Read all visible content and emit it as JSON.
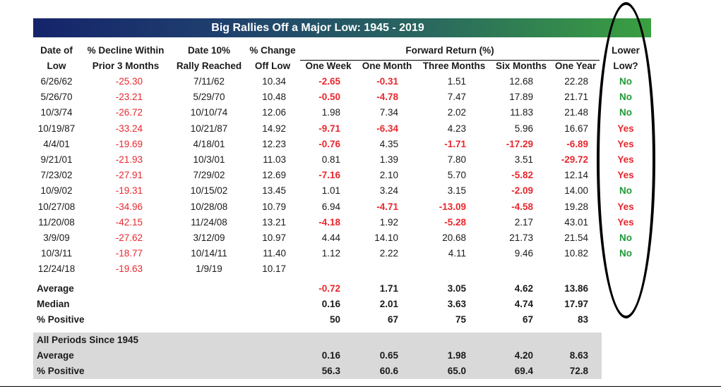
{
  "title": "Big Rallies Off a Major Low: 1945 - 2019",
  "headers": {
    "date_low": [
      "Date of",
      "Low"
    ],
    "decline": [
      "% Decline Within",
      "Prior 3 Months"
    ],
    "date10": [
      "Date 10%",
      "Rally Reached"
    ],
    "change": [
      "% Change",
      "Off Low"
    ],
    "forward": "Forward Return (%)",
    "one_week": "One Week",
    "one_month": "One Month",
    "three_months": "Three Months",
    "six_months": "Six Months",
    "one_year": "One Year",
    "lower_low": [
      "Lower",
      "Low?"
    ]
  },
  "rows": [
    {
      "date_low": "6/26/62",
      "decline": "-25.30",
      "date10": "7/11/62",
      "change": "10.34",
      "w1": "-2.65",
      "m1": "-0.31",
      "m3": "1.51",
      "m6": "12.68",
      "y1": "22.28",
      "lower": "No"
    },
    {
      "date_low": "5/26/70",
      "decline": "-23.21",
      "date10": "5/29/70",
      "change": "10.48",
      "w1": "-0.50",
      "m1": "-4.78",
      "m3": "7.47",
      "m6": "17.89",
      "y1": "21.71",
      "lower": "No"
    },
    {
      "date_low": "10/3/74",
      "decline": "-26.72",
      "date10": "10/10/74",
      "change": "12.06",
      "w1": "1.98",
      "m1": "7.34",
      "m3": "2.02",
      "m6": "11.83",
      "y1": "21.48",
      "lower": "No"
    },
    {
      "date_low": "10/19/87",
      "decline": "-33.24",
      "date10": "10/21/87",
      "change": "14.92",
      "w1": "-9.71",
      "m1": "-6.34",
      "m3": "4.23",
      "m6": "5.96",
      "y1": "16.67",
      "lower": "Yes"
    },
    {
      "date_low": "4/4/01",
      "decline": "-19.69",
      "date10": "4/18/01",
      "change": "12.23",
      "w1": "-0.76",
      "m1": "4.35",
      "m3": "-1.71",
      "m6": "-17.29",
      "y1": "-6.89",
      "lower": "Yes"
    },
    {
      "date_low": "9/21/01",
      "decline": "-21.93",
      "date10": "10/3/01",
      "change": "11.03",
      "w1": "0.81",
      "m1": "1.39",
      "m3": "7.80",
      "m6": "3.51",
      "y1": "-29.72",
      "lower": "Yes"
    },
    {
      "date_low": "7/23/02",
      "decline": "-27.91",
      "date10": "7/29/02",
      "change": "12.69",
      "w1": "-7.16",
      "m1": "2.10",
      "m3": "5.70",
      "m6": "-5.82",
      "y1": "12.14",
      "lower": "Yes"
    },
    {
      "date_low": "10/9/02",
      "decline": "-19.31",
      "date10": "10/15/02",
      "change": "13.45",
      "w1": "1.01",
      "m1": "3.24",
      "m3": "3.15",
      "m6": "-2.09",
      "y1": "14.00",
      "lower": "No"
    },
    {
      "date_low": "10/27/08",
      "decline": "-34.96",
      "date10": "10/28/08",
      "change": "10.79",
      "w1": "6.94",
      "m1": "-4.71",
      "m3": "-13.09",
      "m6": "-4.58",
      "y1": "19.28",
      "lower": "Yes"
    },
    {
      "date_low": "11/20/08",
      "decline": "-42.15",
      "date10": "11/24/08",
      "change": "13.21",
      "w1": "-4.18",
      "m1": "1.92",
      "m3": "-5.28",
      "m6": "2.17",
      "y1": "43.01",
      "lower": "Yes"
    },
    {
      "date_low": "3/9/09",
      "decline": "-27.62",
      "date10": "3/12/09",
      "change": "10.97",
      "w1": "4.44",
      "m1": "14.10",
      "m3": "20.68",
      "m6": "21.73",
      "y1": "21.54",
      "lower": "No"
    },
    {
      "date_low": "10/3/11",
      "decline": "-18.77",
      "date10": "10/14/11",
      "change": "11.40",
      "w1": "1.12",
      "m1": "2.22",
      "m3": "4.11",
      "m6": "9.46",
      "y1": "10.82",
      "lower": "No"
    },
    {
      "date_low": "12/24/18",
      "decline": "-19.63",
      "date10": "1/9/19",
      "change": "10.17",
      "w1": "",
      "m1": "",
      "m3": "",
      "m6": "",
      "y1": "",
      "lower": ""
    }
  ],
  "summary": [
    {
      "label": "Average",
      "w1": "-0.72",
      "m1": "1.71",
      "m3": "3.05",
      "m6": "4.62",
      "y1": "13.86"
    },
    {
      "label": "Median",
      "w1": "0.16",
      "m1": "2.01",
      "m3": "3.63",
      "m6": "4.74",
      "y1": "17.97"
    },
    {
      "label": "% Positive",
      "w1": "50",
      "m1": "67",
      "m3": "75",
      "m6": "67",
      "y1": "83"
    }
  ],
  "all_periods": {
    "heading": "All Periods Since 1945",
    "rows": [
      {
        "label": "Average",
        "w1": "0.16",
        "m1": "0.65",
        "m3": "1.98",
        "m6": "4.20",
        "y1": "8.63"
      },
      {
        "label": "% Positive",
        "w1": "56.3",
        "m1": "60.6",
        "m3": "65.0",
        "m6": "69.4",
        "y1": "72.8"
      }
    ]
  },
  "colors": {
    "negative": "#e8272d",
    "no": "#1f9a35",
    "yes": "#e8272d",
    "banner_left": "#15246b",
    "banner_right": "#3aa040"
  }
}
